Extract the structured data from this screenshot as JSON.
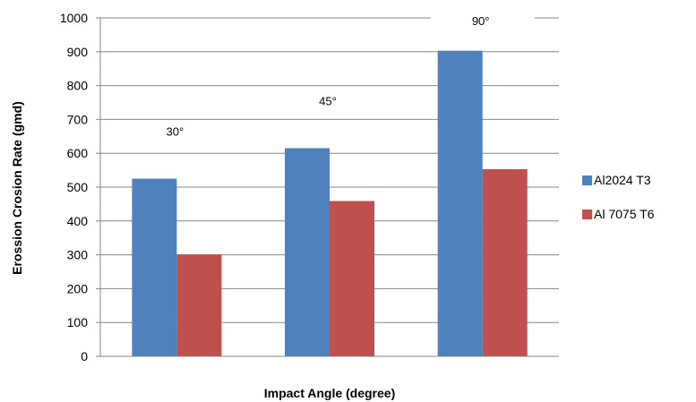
{
  "chart_data": {
    "type": "bar",
    "title": "",
    "xlabel": "Impact Angle (degree)",
    "ylabel": "Erossion Crosion Rate (gmd)",
    "categories": [
      "30°",
      "45°",
      "90°"
    ],
    "series": [
      {
        "name": "Al2024 T3",
        "color": "#4f81bd",
        "values": [
          525,
          615,
          903
        ]
      },
      {
        "name": "Al 7075 T6",
        "color": "#c0504d",
        "values": [
          301,
          459,
          553
        ]
      }
    ],
    "ylim": [
      0,
      1000
    ],
    "yticks": [
      "0",
      "100",
      "200",
      "300",
      "400",
      "500",
      "600",
      "700",
      "800",
      "900",
      "1000"
    ],
    "grid": true,
    "legend_position": "right"
  }
}
